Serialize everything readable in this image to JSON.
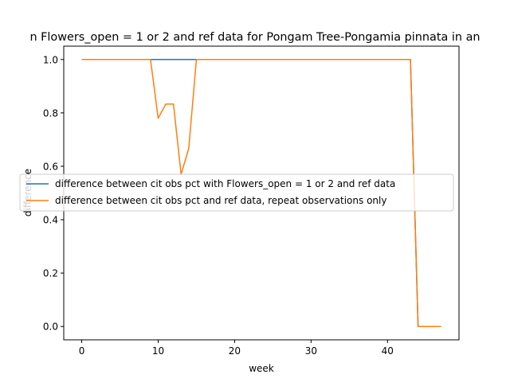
{
  "chart_data": {
    "type": "line",
    "title": "n Flowers_open = 1 or 2 and ref data for Pongam Tree-Pongamia pinnata in an",
    "xlabel": "week",
    "ylabel": "difference",
    "xlim": [
      -2.35,
      49.35
    ],
    "ylim": [
      -0.05,
      1.05
    ],
    "xticks": [
      0,
      10,
      20,
      30,
      40
    ],
    "yticks": [
      0.0,
      0.2,
      0.4,
      0.6,
      0.8,
      1.0
    ],
    "xtick_labels": [
      "0",
      "10",
      "20",
      "30",
      "40"
    ],
    "ytick_labels": [
      "0.0",
      "0.2",
      "0.4",
      "0.6",
      "0.8",
      "1.0"
    ],
    "grid": false,
    "legend_position": "center-left",
    "series": [
      {
        "name": "difference between cit obs pct with Flowers_open = 1 or 2 and ref data",
        "color": "#1f77b4",
        "x": [
          0,
          1,
          2,
          3,
          4,
          5,
          6,
          7,
          8,
          9,
          10,
          11,
          12,
          13,
          14,
          15,
          16,
          17,
          18,
          19,
          20,
          21,
          22,
          23,
          24,
          25,
          26,
          27,
          28,
          29,
          30,
          31,
          32,
          33,
          34,
          35,
          36,
          37,
          38,
          39,
          40,
          41,
          42,
          43,
          44,
          45,
          46,
          47
        ],
        "y": [
          1,
          1,
          1,
          1,
          1,
          1,
          1,
          1,
          1,
          1,
          1,
          1,
          1,
          1,
          1,
          1,
          1,
          1,
          1,
          1,
          1,
          1,
          1,
          1,
          1,
          1,
          1,
          1,
          1,
          1,
          1,
          1,
          1,
          1,
          1,
          1,
          1,
          1,
          1,
          1,
          1,
          1,
          1,
          1,
          0,
          0,
          0,
          0
        ]
      },
      {
        "name": "difference between cit obs pct and ref data, repeat observations only",
        "color": "#ff7f0e",
        "x": [
          0,
          1,
          2,
          3,
          4,
          5,
          6,
          7,
          8,
          9,
          10,
          11,
          12,
          13,
          14,
          15,
          16,
          17,
          18,
          19,
          20,
          21,
          22,
          23,
          24,
          25,
          26,
          27,
          28,
          29,
          30,
          31,
          32,
          33,
          34,
          35,
          36,
          37,
          38,
          39,
          40,
          41,
          42,
          43,
          44,
          45,
          46,
          47
        ],
        "y": [
          1,
          1,
          1,
          1,
          1,
          1,
          1,
          1,
          1,
          1,
          0.78,
          0.833,
          0.833,
          0.57,
          0.667,
          1,
          1,
          1,
          1,
          1,
          1,
          1,
          1,
          1,
          1,
          1,
          1,
          1,
          1,
          1,
          1,
          1,
          1,
          1,
          1,
          1,
          1,
          1,
          1,
          1,
          1,
          1,
          1,
          1,
          0,
          0,
          0,
          0
        ]
      }
    ]
  }
}
